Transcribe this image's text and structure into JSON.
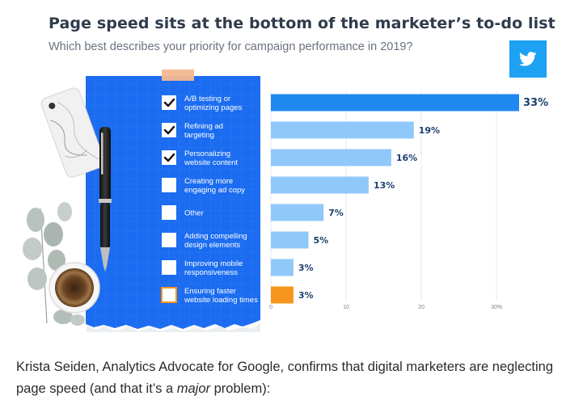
{
  "header": {
    "title": "Page speed sits at the bottom of the marketer’s to-do list",
    "subtitle": "Which best describes your priority for campaign performance in 2019?"
  },
  "share": {
    "icon": "twitter-icon"
  },
  "checklist": [
    {
      "lines": [
        "A/B testing or",
        "optimizing pages"
      ],
      "checked": true
    },
    {
      "lines": [
        "Refining ad",
        "targeting"
      ],
      "checked": true
    },
    {
      "lines": [
        "Personalizing",
        "website content"
      ],
      "checked": true
    },
    {
      "lines": [
        "Creating more",
        "engaging ad copy"
      ],
      "checked": false
    },
    {
      "lines": [
        "Other"
      ],
      "checked": false
    },
    {
      "lines": [
        "Adding compelling",
        "design elements"
      ],
      "checked": false
    },
    {
      "lines": [
        "Improving mobile",
        "responsiveness"
      ],
      "checked": false
    },
    {
      "lines": [
        "Ensuring faster",
        "website loading times"
      ],
      "checked": false,
      "highlight": true
    }
  ],
  "chart_data": {
    "type": "bar",
    "orientation": "horizontal",
    "categories": [
      "A/B testing or optimizing pages",
      "Refining ad targeting",
      "Personalizing website content",
      "Creating more engaging ad copy",
      "Other",
      "Adding compelling design elements",
      "Improving mobile responsiveness",
      "Ensuring faster website loading times"
    ],
    "values": [
      33,
      19,
      16,
      13,
      7,
      5,
      3,
      3
    ],
    "value_labels": [
      "33%",
      "19%",
      "16%",
      "13%",
      "7%",
      "5%",
      "3%",
      "3%"
    ],
    "tick_values": [
      0,
      10,
      20,
      30
    ],
    "tick_labels": [
      "0",
      "10",
      "20",
      "30%"
    ],
    "xlim": [
      0,
      33
    ],
    "grid": true,
    "colors": {
      "top": "#1f88f0",
      "default": "#90c8fa",
      "highlight": "#f7941d",
      "label": "#1d3f6e"
    }
  },
  "quote": {
    "before": "Krista Seiden, Analytics Advocate for Google, confirms that digital marketers are neglecting page speed (and that it’s a ",
    "emphasis": "major",
    "after": " problem):"
  }
}
